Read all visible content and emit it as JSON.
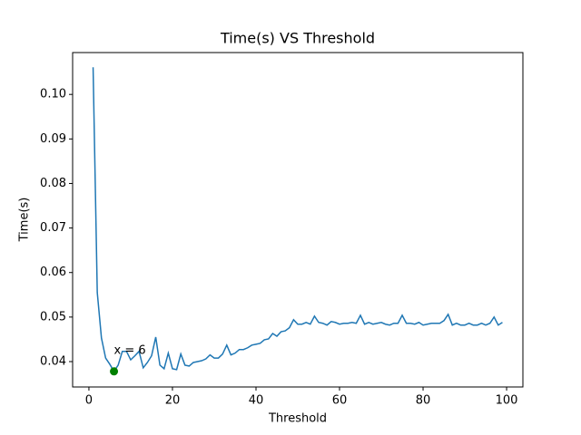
{
  "chart_data": {
    "type": "line",
    "title": "Time(s) VS Threshold",
    "x_label": "Threshold",
    "y_label": "Time(s)",
    "x": [
      1,
      2,
      3,
      4,
      5,
      6,
      7,
      8,
      9,
      10,
      11,
      12,
      13,
      14,
      15,
      16,
      17,
      18,
      19,
      20,
      21,
      22,
      23,
      24,
      25,
      26,
      27,
      28,
      29,
      30,
      31,
      32,
      33,
      34,
      35,
      36,
      37,
      38,
      39,
      40,
      41,
      42,
      43,
      44,
      45,
      46,
      47,
      48,
      49,
      50,
      51,
      52,
      53,
      54,
      55,
      56,
      57,
      58,
      59,
      60,
      61,
      62,
      63,
      64,
      65,
      66,
      67,
      68,
      69,
      70,
      71,
      72,
      73,
      74,
      75,
      76,
      77,
      78,
      79,
      80,
      81,
      82,
      83,
      84,
      85,
      86,
      87,
      88,
      89,
      90,
      91,
      92,
      93,
      94,
      95,
      96,
      97,
      98,
      99
    ],
    "series": [
      {
        "color": "#1f77b4",
        "values": [
          0.1061,
          0.0555,
          0.0453,
          0.0408,
          0.0394,
          0.0378,
          0.0392,
          0.0423,
          0.0423,
          0.0404,
          0.0413,
          0.0423,
          0.0386,
          0.0398,
          0.0413,
          0.0455,
          0.0392,
          0.0384,
          0.0419,
          0.0384,
          0.0382,
          0.0417,
          0.0392,
          0.039,
          0.0398,
          0.04,
          0.0402,
          0.0406,
          0.0415,
          0.0408,
          0.0408,
          0.0417,
          0.0437,
          0.0415,
          0.0419,
          0.0427,
          0.0427,
          0.0431,
          0.0437,
          0.0439,
          0.0441,
          0.0449,
          0.0451,
          0.0463,
          0.0457,
          0.0467,
          0.0469,
          0.0476,
          0.0494,
          0.0484,
          0.0484,
          0.0488,
          0.0484,
          0.0502,
          0.0488,
          0.0486,
          0.0482,
          0.049,
          0.0488,
          0.0484,
          0.0486,
          0.0486,
          0.0488,
          0.0486,
          0.0504,
          0.0484,
          0.0488,
          0.0484,
          0.0486,
          0.0488,
          0.0484,
          0.0482,
          0.0486,
          0.0486,
          0.0504,
          0.0486,
          0.0486,
          0.0484,
          0.0488,
          0.0482,
          0.0484,
          0.0486,
          0.0486,
          0.0486,
          0.0492,
          0.0506,
          0.0482,
          0.0486,
          0.0482,
          0.0482,
          0.0486,
          0.0482,
          0.0482,
          0.0486,
          0.0482,
          0.0486,
          0.05,
          0.0482,
          0.0488
        ]
      }
    ],
    "highlight": {
      "x": 6,
      "value": 0.0378,
      "color": "green",
      "label": "x = 6"
    },
    "xlim": [
      -3.9,
      103.9
    ],
    "xticks": [
      0,
      20,
      40,
      60,
      80,
      100
    ],
    "ylim": [
      0.0343,
      0.1094
    ],
    "yticks": [
      0.04,
      0.05,
      0.06,
      0.07,
      0.08,
      0.09,
      {
        "value": 0.1,
        "label": "0.10"
      }
    ]
  }
}
